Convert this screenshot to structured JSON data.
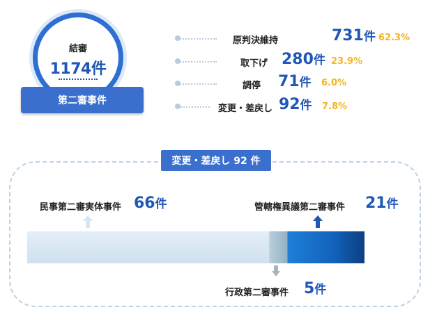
{
  "total": {
    "title": "結審",
    "value": "1174件",
    "category": "第二審事件"
  },
  "breakdown": [
    {
      "label": "原判決維持",
      "count": "731",
      "unit": "件",
      "percent": "62.3%"
    },
    {
      "label": "取下げ",
      "count": "280",
      "unit": "件",
      "percent": "23.9%"
    },
    {
      "label": "調停",
      "count": "71",
      "unit": "件",
      "percent": "6.0%"
    },
    {
      "label": "変更・差戻し",
      "count": "92",
      "unit": "件",
      "percent": "7.8%"
    }
  ],
  "detail": {
    "tag": "変更・差戻し 92 件",
    "segments": [
      {
        "label": "民事第二審実体事件",
        "count": "66",
        "unit": "件",
        "color": "#d7e6f3",
        "arrow": "up"
      },
      {
        "label": "行政第二審事件",
        "count": "5",
        "unit": "件",
        "color": "#a9c3d3",
        "arrow": "down"
      },
      {
        "label": "管轄権異議第二審事件",
        "count": "21",
        "unit": "件",
        "color": "#1565c7",
        "arrow": "up"
      }
    ]
  },
  "colors": {
    "accent": "#1f57b8",
    "pill": "#3a6fce",
    "percent": "#f2b523",
    "dashed": "#bcd0ea"
  },
  "chart_data": {
    "type": "bar",
    "categories": [
      "民事第二審実体事件",
      "行政第二審事件",
      "管轄権異議第二審事件"
    ],
    "values": [
      66,
      5,
      21
    ],
    "total": 92,
    "title": "変更・差戻し 92 件"
  }
}
